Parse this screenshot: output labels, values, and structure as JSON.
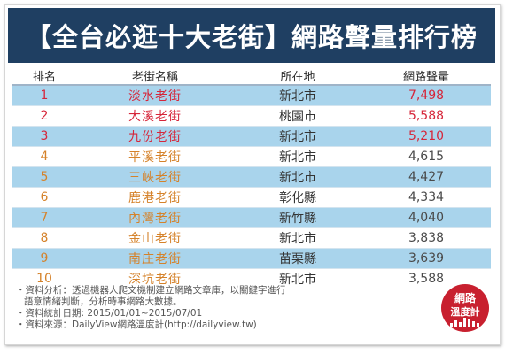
{
  "title": "【全台必逛十大老街】網路聲量排行榜",
  "headers": {
    "rank": "排名",
    "name": "老街名稱",
    "location": "所在地",
    "volume": "網路聲量"
  },
  "colors": {
    "title_bg": "#1f3f62",
    "row_stripe": "#a9d4ec",
    "top3_text": "#d6263a",
    "rest_text": "#d5822a"
  },
  "rows": [
    {
      "rank": "1",
      "name": "淡水老街",
      "location": "新北市",
      "volume": "7,498"
    },
    {
      "rank": "2",
      "name": "大溪老街",
      "location": "桃園市",
      "volume": "5,588"
    },
    {
      "rank": "3",
      "name": "九份老街",
      "location": "新北市",
      "volume": "5,210"
    },
    {
      "rank": "4",
      "name": "平溪老街",
      "location": "新北市",
      "volume": "4,615"
    },
    {
      "rank": "5",
      "name": "三峽老街",
      "location": "新北市",
      "volume": "4,427"
    },
    {
      "rank": "6",
      "name": "鹿港老街",
      "location": "彰化縣",
      "volume": "4,334"
    },
    {
      "rank": "7",
      "name": "內灣老街",
      "location": "新竹縣",
      "volume": "4,040"
    },
    {
      "rank": "8",
      "name": "金山老街",
      "location": "新北市",
      "volume": "3,838"
    },
    {
      "rank": "9",
      "name": "南庄老街",
      "location": "苗栗縣",
      "volume": "3,639"
    },
    {
      "rank": "10",
      "name": "深坑老街",
      "location": "新北市",
      "volume": "3,588"
    }
  ],
  "notes": {
    "analysis_line1": "・資料分析：透過機器人爬文機制建立網路文章庫，以關鍵字進行",
    "analysis_line2": "語意情緒判斷，分析時事網路大數據。",
    "period": "・資料統計日期: 2015/01/01~2015/07/01",
    "source": "・資料來源：DailyView網路溫度計(http://dailyview.tw)"
  },
  "logo": {
    "line1": "網路",
    "line2": "溫度計",
    "bg": "#c8202f"
  }
}
